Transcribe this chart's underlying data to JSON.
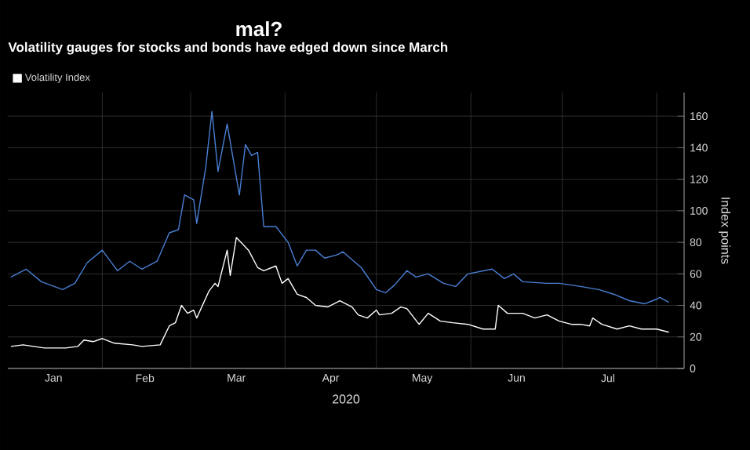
{
  "chart_data": {
    "type": "line",
    "title": "mal?",
    "subtitle": "Volatility gauges for stocks and bonds have edged down since March",
    "xlabel": "2020",
    "ylabel": "Index points",
    "xlim": [
      "2020-01-01",
      "2020-08-10"
    ],
    "ylim": [
      0,
      175
    ],
    "yticks": [
      0,
      20,
      40,
      60,
      80,
      100,
      120,
      140,
      160
    ],
    "xticks": [
      {
        "value": "2020-01-16",
        "label": "Jan"
      },
      {
        "value": "2020-02-15",
        "label": "Feb"
      },
      {
        "value": "2020-03-16",
        "label": "Mar"
      },
      {
        "value": "2020-04-16",
        "label": "Apr"
      },
      {
        "value": "2020-05-16",
        "label": "May"
      },
      {
        "value": "2020-06-16",
        "label": "Jun"
      },
      {
        "value": "2020-07-16",
        "label": "Jul"
      },
      {
        "value": "2020-02-01",
        "label": null
      },
      {
        "value": "2020-03-01",
        "label": null
      },
      {
        "value": "2020-04-01",
        "label": null
      },
      {
        "value": "2020-05-01",
        "label": null
      },
      {
        "value": "2020-06-01",
        "label": null
      },
      {
        "value": "2020-07-01",
        "label": null
      },
      {
        "value": "2020-08-01",
        "label": null
      }
    ],
    "grid": true,
    "legend": "top left",
    "line_style": "solid",
    "series": [
      {
        "name": "Volatility Index",
        "color": "#ffffff",
        "x": [
          "2020-01-02",
          "2020-01-06",
          "2020-01-13",
          "2020-01-20",
          "2020-01-24",
          "2020-01-26",
          "2020-01-29",
          "2020-02-01",
          "2020-02-05",
          "2020-02-11",
          "2020-02-14",
          "2020-02-20",
          "2020-02-23",
          "2020-02-25",
          "2020-02-27",
          "2020-02-29",
          "2020-03-02",
          "2020-03-03",
          "2020-03-07",
          "2020-03-09",
          "2020-03-10",
          "2020-03-13",
          "2020-03-14",
          "2020-03-16",
          "2020-03-18",
          "2020-03-20",
          "2020-03-23",
          "2020-03-25",
          "2020-03-29",
          "2020-03-31",
          "2020-04-02",
          "2020-04-05",
          "2020-04-08",
          "2020-04-11",
          "2020-04-15",
          "2020-04-19",
          "2020-04-23",
          "2020-04-25",
          "2020-04-28",
          "2020-05-01",
          "2020-05-02",
          "2020-05-06",
          "2020-05-09",
          "2020-05-11",
          "2020-05-15",
          "2020-05-18",
          "2020-05-22",
          "2020-05-26",
          "2020-05-31",
          "2020-06-05",
          "2020-06-09",
          "2020-06-10",
          "2020-06-13",
          "2020-06-18",
          "2020-06-22",
          "2020-06-26",
          "2020-06-30",
          "2020-07-04",
          "2020-07-07",
          "2020-07-10",
          "2020-07-11",
          "2020-07-14",
          "2020-07-19",
          "2020-07-23",
          "2020-07-27",
          "2020-08-01",
          "2020-08-05"
        ],
        "values": [
          14,
          15,
          13,
          13,
          14,
          18,
          17,
          19,
          16,
          15,
          14,
          15,
          27,
          29,
          40,
          35,
          37,
          32,
          49,
          54,
          52,
          75,
          59,
          83,
          79,
          75,
          64,
          62,
          65,
          54,
          57,
          47,
          45,
          40,
          39,
          43,
          39,
          34,
          32,
          37,
          34,
          35,
          39,
          38,
          28,
          35,
          30,
          29,
          28,
          25,
          25,
          40,
          35,
          35,
          32,
          34,
          30,
          28,
          28,
          27,
          32,
          28,
          25,
          27,
          25,
          25,
          23
        ]
      },
      {
        "color": "#4a7fd4",
        "x": [
          "2020-01-02",
          "2020-01-07",
          "2020-01-12",
          "2020-01-19",
          "2020-01-23",
          "2020-01-27",
          "2020-02-01",
          "2020-02-06",
          "2020-02-10",
          "2020-02-14",
          "2020-02-19",
          "2020-02-23",
          "2020-02-26",
          "2020-02-28",
          "2020-03-02",
          "2020-03-03",
          "2020-03-06",
          "2020-03-08",
          "2020-03-10",
          "2020-03-13",
          "2020-03-17",
          "2020-03-19",
          "2020-03-21",
          "2020-03-23",
          "2020-03-25",
          "2020-03-29",
          "2020-04-02",
          "2020-04-05",
          "2020-04-08",
          "2020-04-11",
          "2020-04-14",
          "2020-04-18",
          "2020-04-20",
          "2020-04-26",
          "2020-05-01",
          "2020-05-04",
          "2020-05-07",
          "2020-05-11",
          "2020-05-14",
          "2020-05-18",
          "2020-05-23",
          "2020-05-27",
          "2020-05-31",
          "2020-06-08",
          "2020-06-12",
          "2020-06-15",
          "2020-06-18",
          "2020-06-26",
          "2020-06-30",
          "2020-07-07",
          "2020-07-13",
          "2020-07-18",
          "2020-07-23",
          "2020-07-28",
          "2020-08-01",
          "2020-08-02",
          "2020-08-05"
        ],
        "values": [
          58,
          63,
          55,
          50,
          54,
          67,
          75,
          62,
          68,
          63,
          68,
          86,
          88,
          110,
          107,
          92,
          128,
          163,
          125,
          155,
          110,
          142,
          135,
          137,
          90,
          90,
          80,
          65,
          75,
          75,
          70,
          72,
          74,
          64,
          50,
          48,
          53,
          62,
          58,
          60,
          54,
          52,
          60,
          63,
          57,
          60,
          55,
          54,
          54,
          52,
          50,
          47,
          43,
          41,
          44,
          45,
          42
        ]
      }
    ]
  }
}
